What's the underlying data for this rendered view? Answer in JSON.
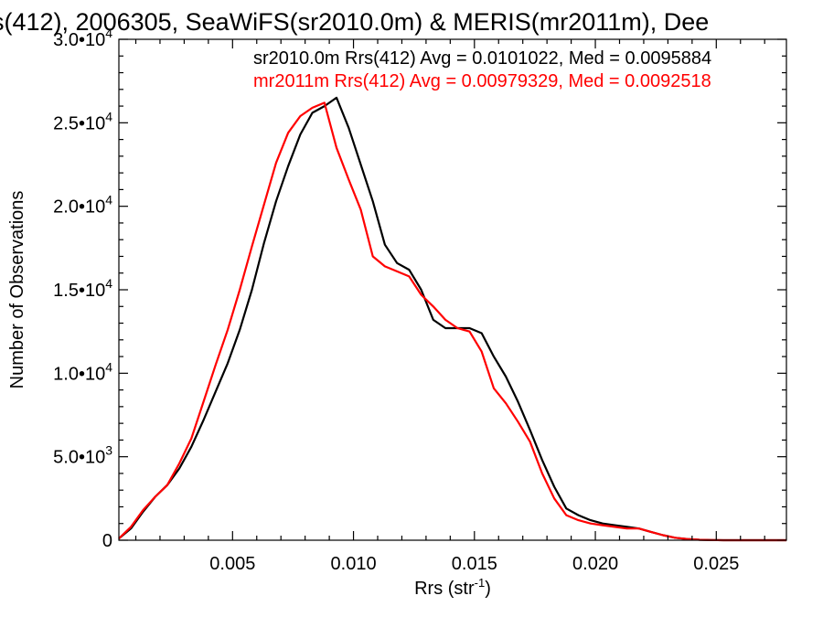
{
  "chart_data": {
    "type": "line",
    "title": "s(412), 2006305, SeaWiFS(sr2010.0m) & MERIS(mr2011m), Dee",
    "xlabel": "Rrs (str",
    "xlabel_sup": "-1",
    "xlabel_end": ")",
    "ylabel": "Number of Observations",
    "xlim": [
      0.0003,
      0.0279
    ],
    "ylim": [
      0,
      30000
    ],
    "x_ticks": [
      {
        "v": 0.005,
        "label": "0.005"
      },
      {
        "v": 0.01,
        "label": "0.010"
      },
      {
        "v": 0.015,
        "label": "0.015"
      },
      {
        "v": 0.02,
        "label": "0.020"
      },
      {
        "v": 0.025,
        "label": "0.025"
      }
    ],
    "y_ticks": [
      {
        "v": 0,
        "mant": "0",
        "exp": ""
      },
      {
        "v": 5000,
        "mant": "5.0•10",
        "exp": "3"
      },
      {
        "v": 10000,
        "mant": "1.0•10",
        "exp": "4"
      },
      {
        "v": 15000,
        "mant": "1.5•10",
        "exp": "4"
      },
      {
        "v": 20000,
        "mant": "2.0•10",
        "exp": "4"
      },
      {
        "v": 25000,
        "mant": "2.5•10",
        "exp": "4"
      },
      {
        "v": 30000,
        "mant": "3.0•10",
        "exp": "4"
      }
    ],
    "series": [
      {
        "name": "sr2010.0m",
        "color": "#000000",
        "stats_label": "sr2010.0m Rrs(412) Avg = 0.0101022, Med = 0.0095884",
        "x": [
          0.0003,
          0.0008,
          0.0013,
          0.0018,
          0.0023,
          0.0028,
          0.0033,
          0.0038,
          0.0043,
          0.0048,
          0.0053,
          0.0058,
          0.0063,
          0.0068,
          0.0073,
          0.0078,
          0.0083,
          0.0088,
          0.0093,
          0.0098,
          0.0103,
          0.0108,
          0.0113,
          0.0118,
          0.0123,
          0.0128,
          0.0133,
          0.0138,
          0.0143,
          0.0148,
          0.0153,
          0.0158,
          0.0163,
          0.0168,
          0.0173,
          0.0178,
          0.0183,
          0.0188,
          0.0193,
          0.0198,
          0.0203,
          0.0208,
          0.0213,
          0.0218,
          0.0223,
          0.0228,
          0.0233,
          0.0238,
          0.0243,
          0.0248,
          0.0253,
          0.0258,
          0.0263,
          0.0268,
          0.0273,
          0.0279
        ],
        "y": [
          100,
          700,
          1700,
          2600,
          3300,
          4300,
          5600,
          7200,
          8900,
          10600,
          12600,
          15000,
          17800,
          20300,
          22400,
          24300,
          25600,
          26000,
          26500,
          24700,
          22500,
          20300,
          17700,
          16600,
          16200,
          15000,
          13200,
          12700,
          12700,
          12700,
          12400,
          11000,
          9800,
          8300,
          6600,
          4800,
          3200,
          1900,
          1500,
          1200,
          1000,
          900,
          800,
          700,
          500,
          300,
          150,
          70,
          30,
          10,
          0,
          0,
          0,
          0,
          0,
          0
        ]
      },
      {
        "name": "mr2011m",
        "color": "#ff0000",
        "stats_label": "mr2011m Rrs(412) Avg = 0.00979329, Med = 0.0092518",
        "x": [
          0.0003,
          0.0008,
          0.0013,
          0.0018,
          0.0023,
          0.0028,
          0.0033,
          0.0038,
          0.0043,
          0.0048,
          0.0053,
          0.0058,
          0.0063,
          0.0068,
          0.0073,
          0.0078,
          0.0083,
          0.0088,
          0.0093,
          0.0098,
          0.0103,
          0.0108,
          0.0113,
          0.0118,
          0.0123,
          0.0128,
          0.0133,
          0.0138,
          0.0143,
          0.0148,
          0.0153,
          0.0158,
          0.0163,
          0.0168,
          0.0173,
          0.0178,
          0.0183,
          0.0188,
          0.0193,
          0.0198,
          0.0203,
          0.0208,
          0.0213,
          0.0218,
          0.0223,
          0.0228,
          0.0233,
          0.0238,
          0.0243,
          0.0248,
          0.0253,
          0.0258,
          0.0263,
          0.0268,
          0.0273,
          0.0279
        ],
        "y": [
          100,
          800,
          1800,
          2600,
          3300,
          4600,
          6100,
          8300,
          10500,
          12600,
          15000,
          17600,
          20100,
          22600,
          24400,
          25400,
          25900,
          26200,
          23500,
          21600,
          19800,
          17000,
          16400,
          16100,
          15800,
          14700,
          14000,
          13200,
          12700,
          12500,
          11300,
          9100,
          8200,
          7100,
          5900,
          4000,
          2500,
          1500,
          1200,
          1000,
          900,
          800,
          700,
          700,
          500,
          300,
          150,
          70,
          30,
          10,
          0,
          0,
          0,
          0,
          0,
          0
        ]
      }
    ]
  }
}
